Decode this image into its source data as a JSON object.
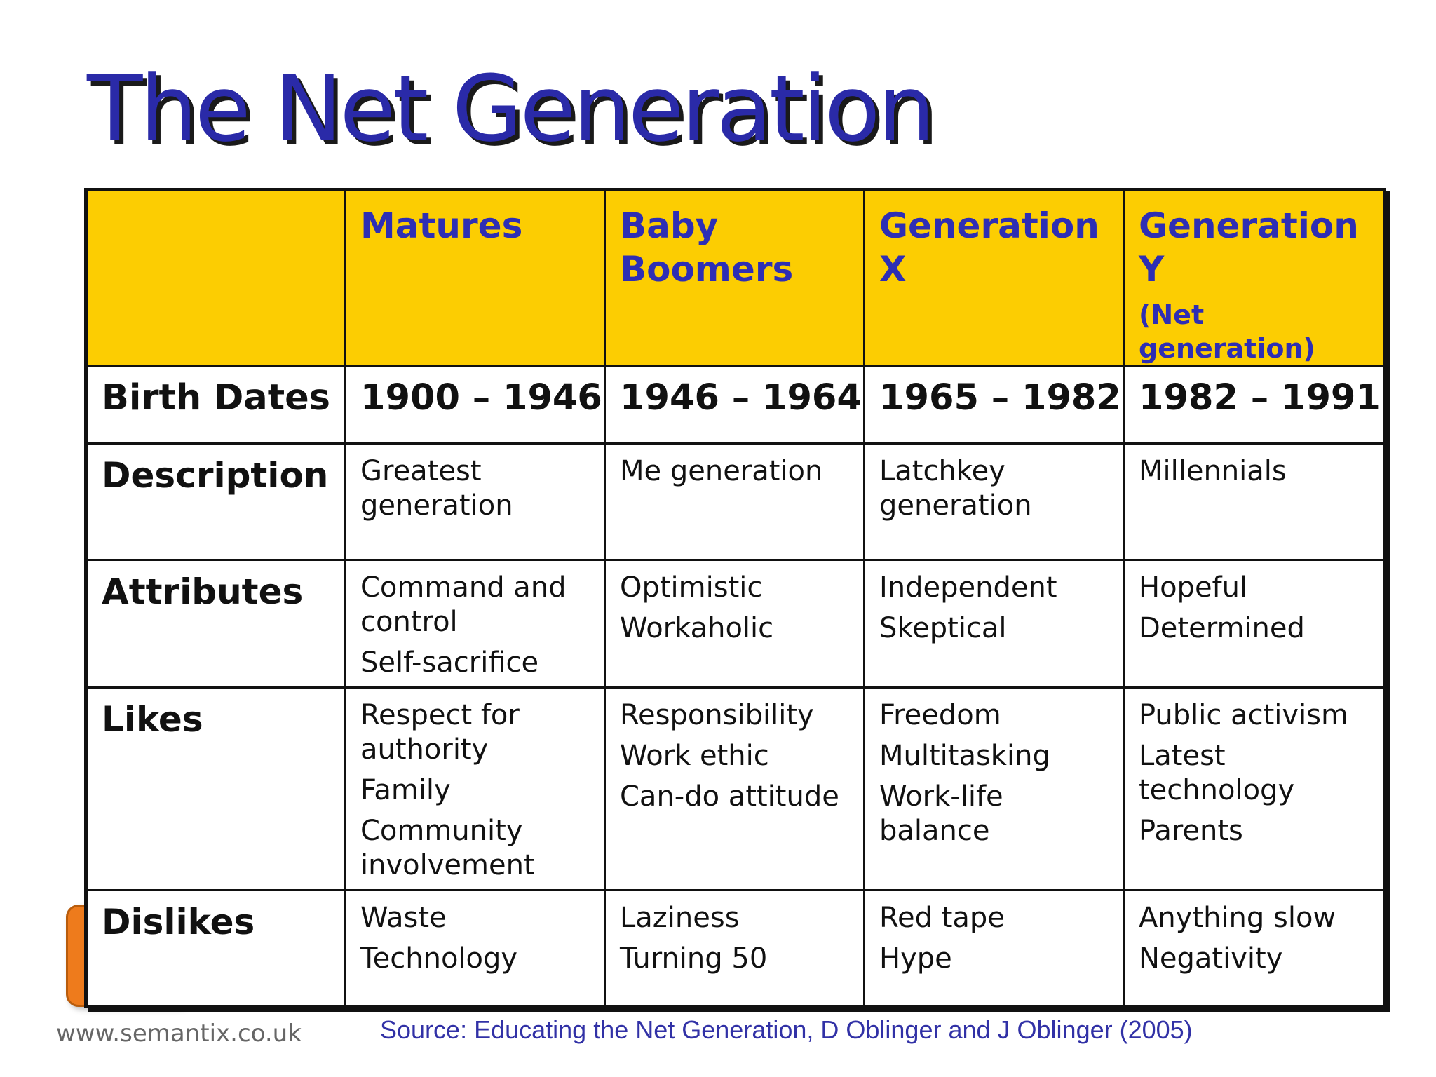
{
  "title": "The Net Generation",
  "table": {
    "headers": [
      {
        "label": "",
        "sub": ""
      },
      {
        "label": "Matures",
        "sub": ""
      },
      {
        "label": "Baby Boomers",
        "sub": ""
      },
      {
        "label": "Generation X",
        "sub": ""
      },
      {
        "label": "Generation Y",
        "sub": "(Net generation)"
      }
    ],
    "rows": [
      {
        "label": "Birth Dates",
        "cells": [
          [
            "1900 – 1946"
          ],
          [
            "1946 – 1964"
          ],
          [
            "1965 – 1982"
          ],
          [
            "1982 – 1991"
          ]
        ]
      },
      {
        "label": "Description",
        "cells": [
          [
            "Greatest generation"
          ],
          [
            "Me generation"
          ],
          [
            "Latchkey generation"
          ],
          [
            "Millennials"
          ]
        ]
      },
      {
        "label": "Attributes",
        "cells": [
          [
            "Command and control",
            "Self-sacrifice"
          ],
          [
            "Optimistic",
            "Workaholic"
          ],
          [
            "Independent",
            "Skeptical"
          ],
          [
            "Hopeful",
            "Determined"
          ]
        ]
      },
      {
        "label": "Likes",
        "cells": [
          [
            "Respect for authority",
            "Family",
            "Community involvement"
          ],
          [
            "Responsibility",
            "Work ethic",
            "Can-do attitude"
          ],
          [
            "Freedom",
            "Multitasking",
            "Work-life balance"
          ],
          [
            "Public activism",
            "Latest technology",
            "Parents"
          ]
        ]
      },
      {
        "label": "Dislikes",
        "cells": [
          [
            "Waste",
            "Technology"
          ],
          [
            "Laziness",
            "Turning 50"
          ],
          [
            "Red tape",
            "Hype"
          ],
          [
            "Anything slow",
            "Negativity"
          ]
        ]
      }
    ]
  },
  "footer": {
    "website": "www.semantix.co.uk",
    "source": "Source: Educating the Net Generation, D Oblinger and J Oblinger (2005)"
  },
  "colors": {
    "title": "#2a2aa8",
    "header_bg": "#fccd02",
    "header_text": "#2e2eb4",
    "source_text": "#3131a6",
    "logo": "#ee7b1c"
  }
}
